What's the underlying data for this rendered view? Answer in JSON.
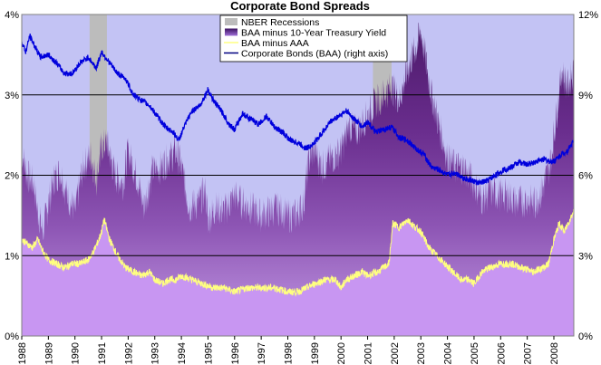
{
  "chart_data": {
    "type": "area",
    "title": "Corporate Bond Spreads",
    "xlabel": "",
    "ylabel": "",
    "x_ticks": [
      "1988",
      "1989",
      "1990",
      "1991",
      "1992",
      "1993",
      "1994",
      "1995",
      "1996",
      "1997",
      "1998",
      "1999",
      "2000",
      "2001",
      "2002",
      "2003",
      "2004",
      "2005",
      "2006",
      "2007",
      "2008"
    ],
    "xlim": [
      1988.0,
      2008.75
    ],
    "y_left": {
      "lim": [
        0,
        4
      ],
      "ticks": [
        "0%",
        "1%",
        "2%",
        "3%",
        "4%"
      ]
    },
    "y_right": {
      "lim": [
        0,
        12
      ],
      "ticks": [
        "0%",
        "3%",
        "6%",
        "9%",
        "12%"
      ]
    },
    "grid": "horizontal",
    "legend_position": "top-center",
    "colors": {
      "plot_background": "#c3c3f4",
      "recession_band": "#bcbcbc",
      "treasury_spread_top": "#4b1868",
      "treasury_spread_mid": "#8d55b4",
      "treasury_spread_base": "#c39ae5",
      "baa_aaa_fill": "#c896f2",
      "baa_aaa_line": "#ffff80",
      "baa_yield_line": "#0000dc",
      "gridline": "#000000"
    },
    "legend": [
      {
        "label": "NBER Recessions",
        "swatch": "box",
        "color": "#bcbcbc"
      },
      {
        "label": "BAA minus 10-Year Treasury Yield",
        "swatch": "gradient-box",
        "color": "#5a2aa0"
      },
      {
        "label": "BAA minus AAA",
        "swatch": "line",
        "color": "#ffff80"
      },
      {
        "label": "Corporate Bonds (BAA) (right axis)",
        "swatch": "line",
        "color": "#000080"
      }
    ],
    "recessions": [
      {
        "start": 1990.55,
        "end": 1991.2
      },
      {
        "start": 2001.2,
        "end": 2001.9
      }
    ],
    "series": [
      {
        "name": "BAA minus 10-Year Treasury Yield",
        "axis": "left",
        "x": [
          1988.0,
          1988.2,
          1988.45,
          1988.6,
          1988.8,
          1989.0,
          1989.2,
          1989.45,
          1989.7,
          1990.0,
          1990.3,
          1990.6,
          1990.8,
          1991.0,
          1991.2,
          1991.5,
          1991.8,
          1992.0,
          1992.3,
          1992.6,
          1992.9,
          1993.2,
          1993.5,
          1993.8,
          1994.0,
          1994.3,
          1994.6,
          1994.9,
          1995.0,
          1995.3,
          1995.6,
          1996.0,
          1996.3,
          1996.6,
          1997.0,
          1997.3,
          1997.6,
          1998.0,
          1998.3,
          1998.6,
          1998.75,
          1998.85,
          1999.0,
          1999.3,
          1999.6,
          2000.0,
          2000.3,
          2000.6,
          2001.0,
          2001.3,
          2001.6,
          2001.9,
          2002.2,
          2002.5,
          2002.7,
          2002.85,
          2003.0,
          2003.2,
          2003.4,
          2003.7,
          2004.0,
          2004.3,
          2004.6,
          2005.0,
          2005.3,
          2005.6,
          2006.0,
          2006.3,
          2006.6,
          2007.0,
          2007.3,
          2007.6,
          2007.9,
          2008.0,
          2008.15,
          2008.3,
          2008.5,
          2008.75
        ],
        "y": [
          2.3,
          2.0,
          1.9,
          1.55,
          1.3,
          1.65,
          1.95,
          2.05,
          1.75,
          1.55,
          2.1,
          2.25,
          1.95,
          2.35,
          2.4,
          2.0,
          1.9,
          2.3,
          2.0,
          1.6,
          2.05,
          2.1,
          2.2,
          2.3,
          2.1,
          1.6,
          1.65,
          1.8,
          1.45,
          1.6,
          1.55,
          1.75,
          1.65,
          1.6,
          1.5,
          1.55,
          1.6,
          1.5,
          1.5,
          1.65,
          2.1,
          2.25,
          2.3,
          2.1,
          2.2,
          2.3,
          2.6,
          2.55,
          2.75,
          2.9,
          3.0,
          3.1,
          2.95,
          3.3,
          3.5,
          3.6,
          3.8,
          3.4,
          3.0,
          2.6,
          2.2,
          2.1,
          2.1,
          1.9,
          1.7,
          1.8,
          1.75,
          1.75,
          1.65,
          1.7,
          1.65,
          1.85,
          2.2,
          2.5,
          2.9,
          3.3,
          3.1,
          3.3
        ]
      },
      {
        "name": "BAA minus AAA",
        "axis": "left",
        "x": [
          1988.0,
          1988.2,
          1988.4,
          1988.6,
          1988.8,
          1989.0,
          1989.3,
          1989.6,
          1989.9,
          1990.2,
          1990.5,
          1990.7,
          1990.9,
          1991.0,
          1991.1,
          1991.3,
          1991.6,
          1991.9,
          1992.2,
          1992.5,
          1992.8,
          1993.0,
          1993.3,
          1993.5,
          1993.8,
          1994.0,
          1994.4,
          1994.8,
          1995.2,
          1995.6,
          1996.0,
          1996.5,
          1997.0,
          1997.5,
          1998.0,
          1998.4,
          1998.7,
          1999.0,
          1999.4,
          1999.8,
          2000.0,
          2000.2,
          2000.5,
          2000.8,
          2001.0,
          2001.4,
          2001.8,
          2001.95,
          2002.2,
          2002.5,
          2002.8,
          2003.0,
          2003.3,
          2003.6,
          2003.9,
          2004.2,
          2004.5,
          2004.8,
          2005.0,
          2005.3,
          2005.6,
          2006.0,
          2006.4,
          2006.8,
          2007.2,
          2007.6,
          2007.8,
          2008.0,
          2008.2,
          2008.4,
          2008.6,
          2008.75
        ],
        "y": [
          1.2,
          1.15,
          1.1,
          1.2,
          1.05,
          0.95,
          0.9,
          0.85,
          0.9,
          0.9,
          0.95,
          1.05,
          1.2,
          1.3,
          1.45,
          1.2,
          1.0,
          0.85,
          0.8,
          0.75,
          0.8,
          0.7,
          0.65,
          0.7,
          0.7,
          0.75,
          0.7,
          0.65,
          0.6,
          0.6,
          0.55,
          0.6,
          0.6,
          0.6,
          0.55,
          0.55,
          0.6,
          0.65,
          0.7,
          0.7,
          0.6,
          0.7,
          0.75,
          0.8,
          0.75,
          0.8,
          0.9,
          1.4,
          1.35,
          1.45,
          1.35,
          1.3,
          1.1,
          1.0,
          0.9,
          0.8,
          0.7,
          0.7,
          0.65,
          0.8,
          0.85,
          0.9,
          0.9,
          0.85,
          0.8,
          0.85,
          0.9,
          1.2,
          1.4,
          1.3,
          1.45,
          1.55
        ]
      },
      {
        "name": "Corporate Bonds (BAA) (right axis)",
        "axis": "right",
        "x": [
          1988.0,
          1988.15,
          1988.3,
          1988.5,
          1988.7,
          1989.0,
          1989.3,
          1989.6,
          1989.9,
          1990.2,
          1990.5,
          1990.8,
          1991.0,
          1991.3,
          1991.6,
          1991.9,
          1992.2,
          1992.5,
          1992.8,
          1993.1,
          1993.4,
          1993.7,
          1993.9,
          1994.1,
          1994.4,
          1994.7,
          1995.0,
          1995.2,
          1995.5,
          1995.8,
          1996.0,
          1996.3,
          1996.6,
          1996.9,
          1997.2,
          1997.5,
          1997.8,
          1998.1,
          1998.4,
          1998.7,
          1999.0,
          1999.3,
          1999.6,
          1999.9,
          2000.2,
          2000.5,
          2000.8,
          2001.0,
          2001.3,
          2001.6,
          2001.9,
          2002.2,
          2002.5,
          2002.8,
          2003.1,
          2003.4,
          2003.7,
          2004.0,
          2004.3,
          2004.6,
          2004.9,
          2005.2,
          2005.5,
          2005.8,
          2006.1,
          2006.4,
          2006.7,
          2007.0,
          2007.3,
          2007.6,
          2007.9,
          2008.1,
          2008.3,
          2008.5,
          2008.75
        ],
        "y": [
          11.0,
          10.6,
          11.2,
          10.8,
          10.4,
          10.5,
          10.2,
          9.8,
          9.8,
          10.2,
          10.4,
          10.0,
          10.6,
          10.2,
          9.8,
          9.6,
          9.0,
          8.8,
          8.6,
          8.2,
          7.8,
          7.6,
          7.3,
          7.8,
          8.4,
          8.6,
          9.2,
          8.8,
          8.4,
          7.9,
          7.7,
          8.3,
          8.1,
          7.9,
          8.2,
          7.8,
          7.6,
          7.3,
          7.2,
          7.0,
          7.2,
          7.6,
          8.0,
          8.2,
          8.4,
          8.1,
          7.8,
          8.0,
          7.6,
          7.7,
          7.8,
          7.4,
          7.3,
          7.0,
          6.8,
          6.3,
          6.2,
          6.0,
          6.1,
          5.9,
          5.8,
          5.7,
          5.8,
          6.0,
          6.2,
          6.3,
          6.5,
          6.4,
          6.5,
          6.6,
          6.5,
          6.6,
          6.8,
          6.9,
          7.3
        ]
      }
    ]
  }
}
